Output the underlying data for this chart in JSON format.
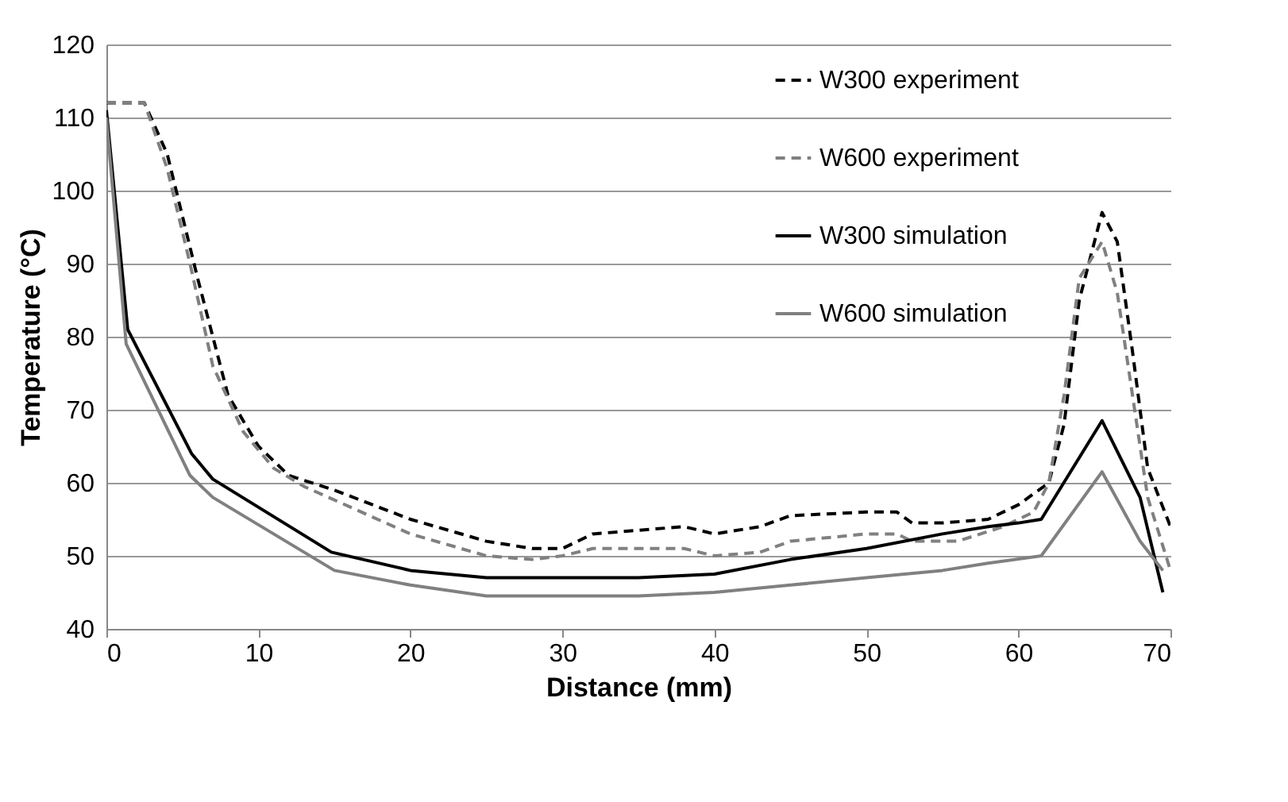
{
  "chart_data": {
    "type": "line",
    "xlabel": "Distance (mm)",
    "ylabel": "Temperature (°C)",
    "xlim": [
      0,
      70
    ],
    "xticks": [
      0,
      10,
      20,
      30,
      40,
      50,
      60,
      70
    ],
    "ylim": [
      40,
      120
    ],
    "yticks": [
      40,
      50,
      60,
      70,
      80,
      90,
      100,
      110,
      120
    ],
    "grid": "y",
    "legend": "top right",
    "marker": "none",
    "series": [
      {
        "name": "W300 experiment",
        "color": "#000000",
        "line_style": "dashed",
        "x": [
          0,
          2.5,
          4,
          6,
          8,
          10,
          12,
          15,
          20,
          25,
          28,
          30,
          32,
          35,
          38,
          40,
          43,
          45,
          50,
          52,
          53,
          55,
          58,
          60,
          62,
          63,
          64,
          65.5,
          66.5,
          67.5,
          68.5,
          70
        ],
        "values": [
          112,
          112,
          105,
          88,
          72,
          65,
          61,
          59,
          55,
          52,
          51,
          51,
          53,
          53.5,
          54,
          53,
          54,
          55.5,
          56,
          56,
          54.5,
          54.5,
          55,
          57,
          60,
          68,
          85,
          97,
          93,
          78,
          62,
          54
        ]
      },
      {
        "name": "W600 experiment",
        "color": "#808080",
        "line_style": "dashed",
        "x": [
          0,
          2.5,
          4,
          5.5,
          7,
          9,
          11,
          13,
          20,
          25,
          28,
          30,
          32,
          35,
          38,
          40,
          43,
          45,
          50,
          52,
          53,
          56,
          59,
          61,
          62,
          63,
          64,
          65.5,
          66.5,
          67.5,
          68.5,
          70
        ],
        "values": [
          112,
          112,
          103,
          90,
          76,
          67,
          62,
          59.5,
          53,
          50,
          49.5,
          50,
          51,
          51,
          51,
          50,
          50.5,
          52,
          53,
          53,
          52,
          52,
          54,
          56,
          60,
          72,
          88,
          93,
          86,
          72,
          58,
          48
        ]
      },
      {
        "name": "W300 simulation",
        "color": "#000000",
        "line_style": "solid",
        "x": [
          0,
          1.4,
          5.6,
          7,
          14.8,
          20,
          25,
          35,
          40,
          45,
          50,
          55,
          58,
          60,
          61.5,
          65.5,
          68,
          69.5
        ],
        "values": [
          111,
          81,
          64,
          60.5,
          50.5,
          48,
          47,
          47,
          47.5,
          49.5,
          51,
          53,
          54,
          54.5,
          55,
          68.5,
          58,
          45
        ]
      },
      {
        "name": "W600 simulation",
        "color": "#808080",
        "line_style": "solid",
        "x": [
          0,
          1.3,
          5.5,
          7,
          15,
          20,
          25,
          35,
          40,
          45,
          50,
          55,
          58,
          61.5,
          65.5,
          68,
          69.5
        ],
        "values": [
          110,
          79,
          61,
          58,
          48,
          46,
          44.5,
          44.5,
          45,
          46,
          47,
          48,
          49,
          50,
          61.5,
          52,
          48
        ]
      }
    ]
  }
}
